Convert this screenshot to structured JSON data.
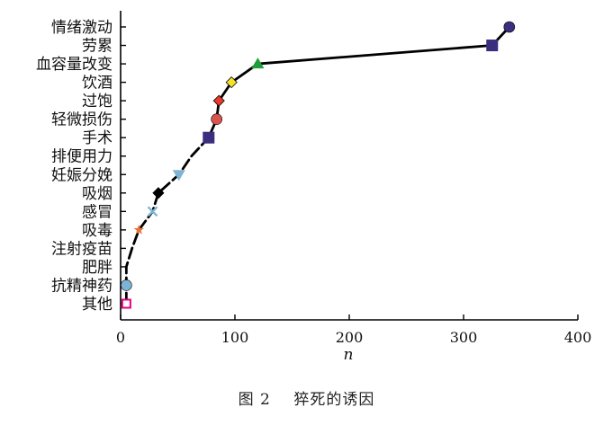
{
  "caption": {
    "label": "图 2",
    "text": "猝死的诱因"
  },
  "chart_data": {
    "type": "line",
    "xlabel": "n",
    "ylabel": "",
    "xlim": [
      0,
      400
    ],
    "x_ticks": [
      "0",
      "100",
      "200",
      "300",
      "400"
    ],
    "categories": [
      "其他",
      "抗精神药",
      "肥胖",
      "注射疫苗",
      "吸毒",
      "感冒",
      "吸烟",
      "妊娠分娩",
      "排便用力",
      "手术",
      "轻微损伤",
      "过饱",
      "饮酒",
      "血容量改变",
      "劳累",
      "情绪激动"
    ],
    "series": [
      {
        "values": [
          5,
          5,
          5,
          10,
          16,
          28,
          33,
          51,
          62,
          77,
          84,
          86,
          97,
          120,
          325,
          340
        ],
        "markers": [
          {
            "shape": "square-open",
            "color": "#e5007e"
          },
          {
            "shape": "circle",
            "color": "#7fb3d5"
          },
          {
            "shape": "none",
            "color": "#000000"
          },
          {
            "shape": "none",
            "color": "#000000"
          },
          {
            "shape": "star",
            "color": "#e8733a"
          },
          {
            "shape": "x",
            "color": "#7fb3d5"
          },
          {
            "shape": "diamond",
            "color": "#000000"
          },
          {
            "shape": "triangle-down",
            "color": "#7fb3d5"
          },
          {
            "shape": "none",
            "color": "#000000"
          },
          {
            "shape": "square",
            "color": "#3b2e7e"
          },
          {
            "shape": "circle",
            "color": "#d9534f"
          },
          {
            "shape": "diamond",
            "color": "#e8392b"
          },
          {
            "shape": "diamond",
            "color": "#f5e02a"
          },
          {
            "shape": "triangle-up",
            "color": "#1f9d3a"
          },
          {
            "shape": "square",
            "color": "#3b2e7e"
          },
          {
            "shape": "circle",
            "color": "#3b2e7e"
          }
        ]
      }
    ],
    "grid": false,
    "legend": "none"
  }
}
